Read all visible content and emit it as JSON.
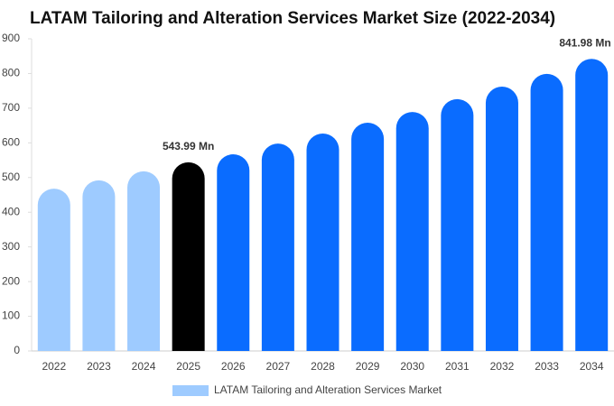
{
  "chart_data": {
    "type": "bar",
    "title": "LATAM Tailoring and Alteration Services Market Size (2022-2034)",
    "categories": [
      "2022",
      "2023",
      "2024",
      "2025",
      "2026",
      "2027",
      "2028",
      "2029",
      "2030",
      "2031",
      "2032",
      "2033",
      "2034"
    ],
    "series": [
      {
        "name": "LATAM Tailoring and Alteration Services Market",
        "color": "#9ecbff",
        "values": [
          468,
          492,
          518,
          543.99,
          567,
          598,
          627,
          658,
          689,
          726,
          762,
          799,
          841.98
        ],
        "value_labels": [
          null,
          null,
          null,
          "543.99 Mn",
          null,
          null,
          null,
          null,
          null,
          null,
          null,
          null,
          "841.98 Mn"
        ],
        "bar_colors": [
          "#9ecbff",
          "#9ecbff",
          "#9ecbff",
          "#000000",
          "#0a6cff",
          "#0a6cff",
          "#0a6cff",
          "#0a6cff",
          "#0a6cff",
          "#0a6cff",
          "#0a6cff",
          "#0a6cff",
          "#0a6cff"
        ]
      }
    ],
    "ylim": [
      0,
      900
    ],
    "yticks": [
      0,
      100,
      200,
      300,
      400,
      500,
      600,
      700,
      800,
      900
    ],
    "legend": "bottom"
  }
}
